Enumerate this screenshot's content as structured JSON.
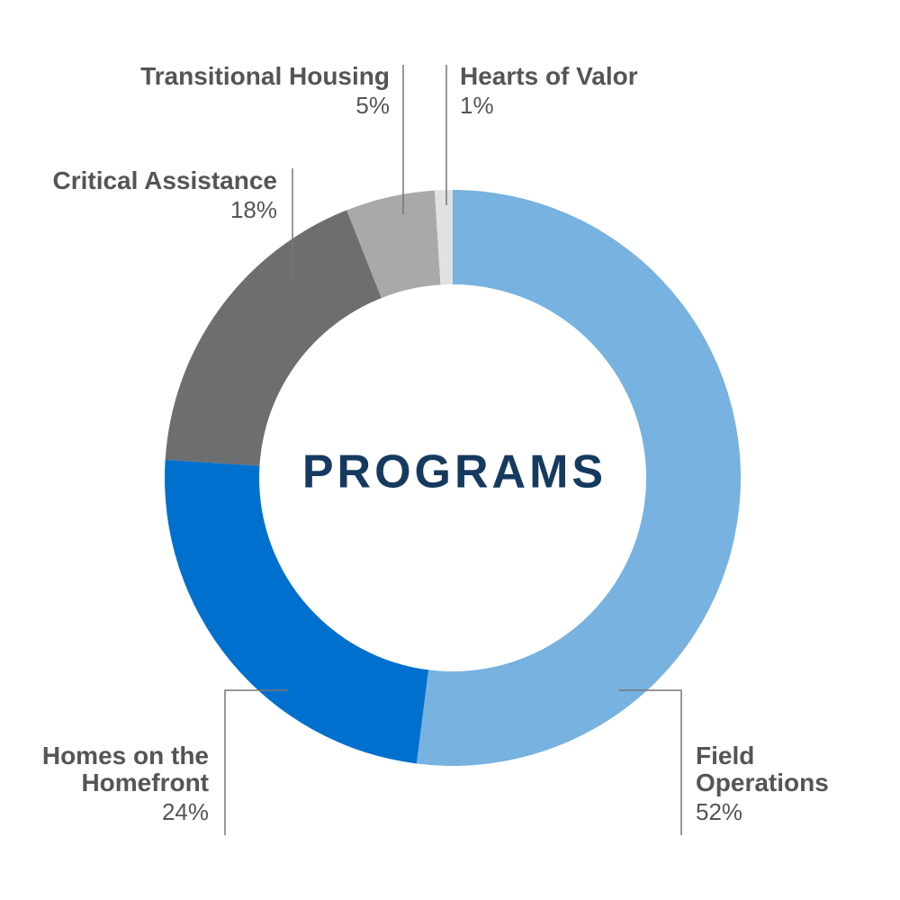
{
  "chart_data": {
    "type": "donut",
    "title": "PROGRAMS",
    "categories": [
      "Field Operations",
      "Homes on the Homefront",
      "Critical Assistance",
      "Transitional Housing",
      "Hearts of Valor"
    ],
    "values": [
      52,
      24,
      18,
      5,
      1
    ],
    "value_labels": [
      "52%",
      "24%",
      "18%",
      "5%",
      "1%"
    ],
    "colors": [
      "#77b2e0",
      "#0070cf",
      "#6d6e70",
      "#a8a9ab",
      "#e0e1e2"
    ]
  }
}
